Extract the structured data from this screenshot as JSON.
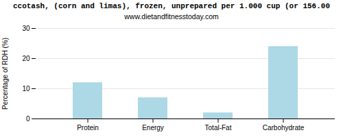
{
  "chart_data": {
    "type": "bar",
    "title": "ccotash, (corn and limas), frozen, unprepared per 1.000 cup (or 156.00",
    "subtitle": "www.dietandfitnesstoday.com",
    "categories": [
      "Protein",
      "Energy",
      "Total-Fat",
      "Carbohydrate"
    ],
    "values": [
      12,
      7,
      2,
      24
    ],
    "color": "#add8e6",
    "ylabel": "Percentage of RDH (%)",
    "ylim": [
      0,
      30
    ],
    "yticks": [
      0,
      10,
      20,
      30
    ],
    "grid": true
  }
}
